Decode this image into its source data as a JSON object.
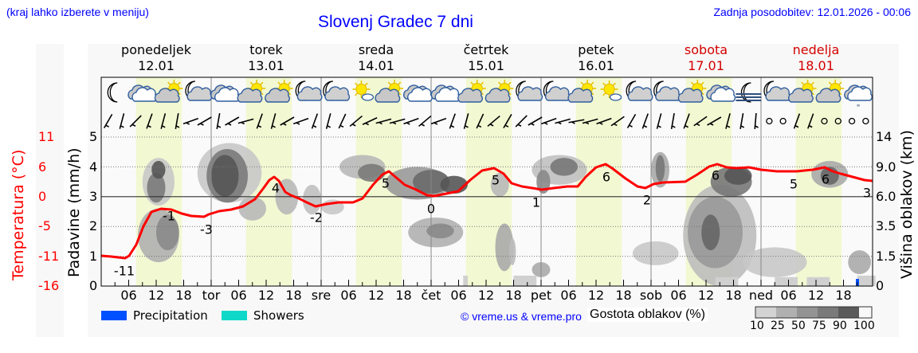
{
  "header": {
    "menu_hint": "(kraj lahko izberete v meniju)",
    "title": "Slovenj Gradec 7 dni",
    "last_update": "Zadnja posodobitev: 12.01.2026 - 00:06"
  },
  "days": [
    {
      "name": "ponedeljek",
      "date": "12.01",
      "weekend": false
    },
    {
      "name": "torek",
      "date": "13.01",
      "weekend": false
    },
    {
      "name": "sreda",
      "date": "14.01",
      "weekend": false
    },
    {
      "name": "četrtek",
      "date": "15.01",
      "weekend": false
    },
    {
      "name": "petek",
      "date": "16.01",
      "weekend": false
    },
    {
      "name": "sobota",
      "date": "17.01",
      "weekend": true
    },
    {
      "name": "nedelja",
      "date": "18.01",
      "weekend": true
    }
  ],
  "weather_icons": [
    "moon-icon",
    "cloudy-icon",
    "partly-sunny-icon",
    "moon-cloud-icon",
    "cloudy-icon",
    "partly-sunny-icon",
    "partly-sunny-icon",
    "moon-cloud-icon",
    "moon-cloud-icon",
    "sun-small-cloud-icon",
    "partly-sunny-icon",
    "cloudy-icon",
    "cloudy-icon",
    "partly-sunny-icon",
    "partly-sunny-icon",
    "moon-cloud-icon",
    "moon-cloud-icon",
    "partly-sunny-icon",
    "sun-small-cloud-icon",
    "moon-cloud-icon",
    "moon-cloud-icon",
    "partly-sunny-icon",
    "cloudy-icon",
    "moon-fog-icon",
    "moon-cloud-icon",
    "partly-sunny-icon",
    "partly-sunny-icon",
    "snow-cloud-icon"
  ],
  "axes": {
    "left_temp_title": "Temperatura (°C)",
    "left_temp_ticks": [
      "11",
      "6",
      "0",
      "-5",
      "-11",
      "-16"
    ],
    "left_precip_title": "Padavine (mm/h)",
    "left_precip_ticks": [
      "5",
      "4",
      "3",
      "2",
      "1",
      "0"
    ],
    "right_title": "Višina oblakov (km)",
    "right_ticks": [
      "14",
      "9.0",
      "6.0",
      "3.5",
      "1.5",
      "0"
    ],
    "x_ticks": [
      "06",
      "12",
      "18",
      "tor",
      "06",
      "12",
      "18",
      "sre",
      "06",
      "12",
      "18",
      "čet",
      "06",
      "12",
      "18",
      "pet",
      "06",
      "12",
      "18",
      "sob",
      "06",
      "12",
      "18",
      "ned",
      "06",
      "12",
      "18"
    ]
  },
  "legend": {
    "precipitation": "Precipitation",
    "showers": "Showers",
    "precipitation_color": "#0050ff",
    "showers_color": "#10d8c8",
    "copyright": "© vreme.us & vreme.pro",
    "cloud_density_title": "Gostota oblakov (%)",
    "cloud_density_ticks": [
      "10",
      "25",
      "50",
      "75",
      "90",
      "100"
    ]
  },
  "colors": {
    "temperature_line": "#ff0000",
    "daylight_band": "#f2f8d2",
    "weekend_text": "#d40000",
    "header_link": "#0000ff"
  },
  "chart_data": {
    "type": "line",
    "title": "Slovenj Gradec 7 dni",
    "xlabel": "",
    "ylabel": "Temperatura (°C)",
    "x_hours_from_start": [
      0,
      6,
      9,
      12,
      15,
      18,
      21,
      24,
      27,
      30,
      33,
      36,
      39,
      42,
      45,
      48,
      51,
      54,
      57,
      60,
      63,
      66,
      69,
      72,
      75,
      78,
      81,
      84,
      87,
      90,
      93,
      96,
      99,
      102,
      105,
      108,
      111,
      114,
      117,
      120,
      123,
      126,
      129,
      132,
      135,
      138,
      141,
      144,
      147,
      150,
      153,
      156,
      159,
      162,
      165,
      168
    ],
    "temperature_labels": [
      {
        "hour": 6,
        "value": -11
      },
      {
        "hour": 15,
        "value": -1
      },
      {
        "hour": 24,
        "value": -3
      },
      {
        "hour": 38,
        "value": 4
      },
      {
        "hour": 48,
        "value": -2
      },
      {
        "hour": 62,
        "value": 5
      },
      {
        "hour": 72,
        "value": 0
      },
      {
        "hour": 86,
        "value": 5
      },
      {
        "hour": 96,
        "value": 1
      },
      {
        "hour": 110,
        "value": 6
      },
      {
        "hour": 120,
        "value": 2
      },
      {
        "hour": 134,
        "value": 6
      },
      {
        "hour": 153,
        "value": 5
      },
      {
        "hour": 158,
        "value": 6
      },
      {
        "hour": 168,
        "value": 3
      }
    ],
    "precip_ylim": [
      0,
      5
    ],
    "temp_ticks": [
      11,
      6,
      0,
      -5,
      -11,
      -16
    ],
    "cloud_height_ticks_km": [
      14,
      9.0,
      6.0,
      3.5,
      1.5,
      0
    ],
    "cloud_density_scale_pct": [
      10,
      25,
      50,
      75,
      90,
      100
    ],
    "precipitation_events": [
      {
        "day": "nedelja 18.01",
        "hour_approx": 21,
        "mm_h": 0.2,
        "type": "Precipitation"
      }
    ],
    "grid": true,
    "legend_position": "bottom"
  }
}
